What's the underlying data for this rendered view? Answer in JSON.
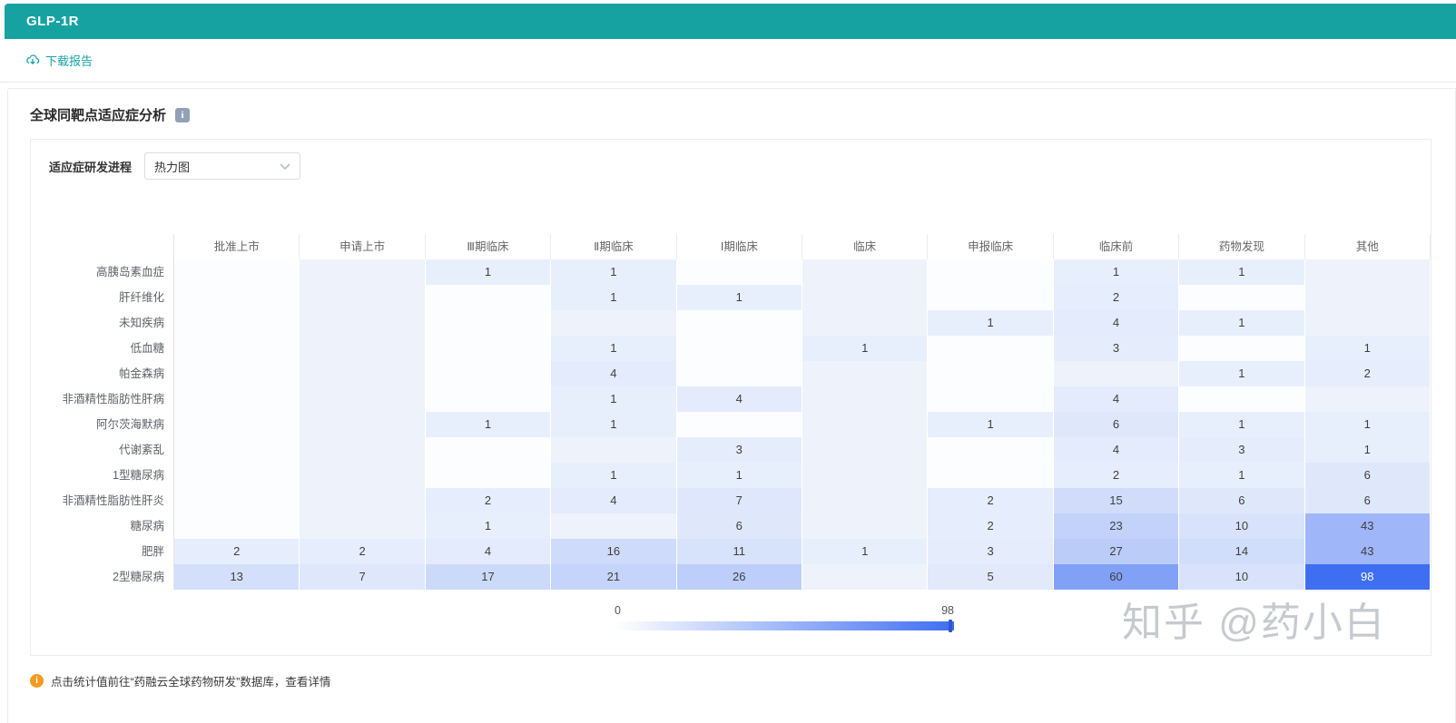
{
  "header": {
    "title": "GLP-1R"
  },
  "toolbar": {
    "download_label": "下载报告"
  },
  "section": {
    "title": "全球同靶点适应症分析"
  },
  "filter": {
    "label": "适应症研发进程",
    "selected": "热力图"
  },
  "icons": {
    "info_glyph": "i",
    "note_glyph": "i"
  },
  "chart_data": {
    "type": "heatmap",
    "title": "全球同靶点适应症分析 - 适应症研发进程热力图",
    "columns": [
      "批准上市",
      "申请上市",
      "Ⅲ期临床",
      "Ⅱ期临床",
      "Ⅰ期临床",
      "临床",
      "申报临床",
      "临床前",
      "药物发现",
      "其他"
    ],
    "rows": [
      {
        "label": "高胰岛素血症",
        "values": [
          null,
          null,
          1,
          1,
          null,
          null,
          null,
          1,
          1,
          null
        ]
      },
      {
        "label": "肝纤维化",
        "values": [
          null,
          null,
          null,
          1,
          1,
          null,
          null,
          2,
          null,
          null
        ]
      },
      {
        "label": "未知疾病",
        "values": [
          null,
          null,
          null,
          null,
          null,
          null,
          1,
          4,
          1,
          null
        ]
      },
      {
        "label": "低血糖",
        "values": [
          null,
          null,
          null,
          1,
          null,
          1,
          null,
          3,
          null,
          1
        ]
      },
      {
        "label": "帕金森病",
        "values": [
          null,
          null,
          null,
          4,
          null,
          null,
          null,
          null,
          1,
          2
        ]
      },
      {
        "label": "非酒精性脂肪性肝病",
        "values": [
          null,
          null,
          null,
          1,
          4,
          null,
          null,
          4,
          null,
          null
        ]
      },
      {
        "label": "阿尔茨海默病",
        "values": [
          null,
          null,
          1,
          1,
          null,
          null,
          1,
          6,
          1,
          1
        ]
      },
      {
        "label": "代谢紊乱",
        "values": [
          null,
          null,
          null,
          null,
          3,
          null,
          null,
          4,
          3,
          1
        ]
      },
      {
        "label": "1型糖尿病",
        "values": [
          null,
          null,
          null,
          1,
          1,
          null,
          null,
          2,
          1,
          6
        ]
      },
      {
        "label": "非酒精性脂肪性肝炎",
        "values": [
          null,
          null,
          2,
          4,
          7,
          null,
          2,
          15,
          6,
          6
        ]
      },
      {
        "label": "糖尿病",
        "values": [
          null,
          null,
          1,
          null,
          6,
          null,
          2,
          23,
          10,
          43
        ]
      },
      {
        "label": "肥胖",
        "values": [
          2,
          2,
          4,
          16,
          11,
          1,
          3,
          27,
          14,
          43
        ]
      },
      {
        "label": "2型糖尿病",
        "values": [
          13,
          7,
          17,
          21,
          26,
          null,
          5,
          60,
          10,
          98
        ]
      }
    ],
    "min": 0,
    "max": 98,
    "legend": {
      "min_label": "0",
      "max_label": "98",
      "position": "bottom-center"
    },
    "colors": {
      "low": "#eaf0fc",
      "high": "#3e6ff2",
      "empty_even_col": "#fbfdff",
      "empty_odd_col": "#eef2fb"
    }
  },
  "footer": {
    "note": "点击统计值前往“药融云全球药物研发”数据库，查看详情"
  },
  "watermark": {
    "text": "知乎 @药小白"
  },
  "theme": {
    "accent": "#17a2a2",
    "heat_max": "#3e6ff2"
  }
}
